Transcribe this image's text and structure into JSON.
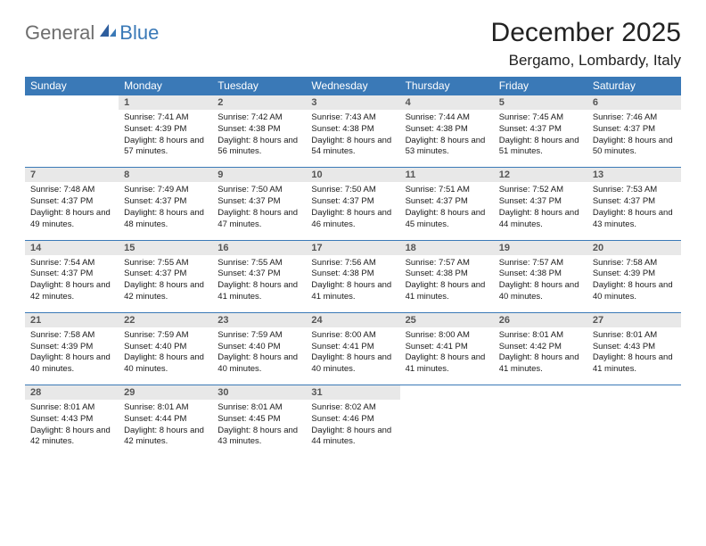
{
  "logo": {
    "general": "General",
    "blue": "Blue"
  },
  "title": "December 2025",
  "location": "Bergamo, Lombardy, Italy",
  "colors": {
    "header_bg": "#3a79b7",
    "header_fg": "#ffffff",
    "daynum_bg": "#e8e8e8",
    "daynum_fg": "#555555",
    "rule": "#3a79b7",
    "page_bg": "#ffffff"
  },
  "weekdays": [
    "Sunday",
    "Monday",
    "Tuesday",
    "Wednesday",
    "Thursday",
    "Friday",
    "Saturday"
  ],
  "weeks": [
    {
      "nums": [
        "",
        "1",
        "2",
        "3",
        "4",
        "5",
        "6"
      ],
      "cells": [
        null,
        {
          "sunrise": "7:41 AM",
          "sunset": "4:39 PM",
          "daylight": "8 hours and 57 minutes."
        },
        {
          "sunrise": "7:42 AM",
          "sunset": "4:38 PM",
          "daylight": "8 hours and 56 minutes."
        },
        {
          "sunrise": "7:43 AM",
          "sunset": "4:38 PM",
          "daylight": "8 hours and 54 minutes."
        },
        {
          "sunrise": "7:44 AM",
          "sunset": "4:38 PM",
          "daylight": "8 hours and 53 minutes."
        },
        {
          "sunrise": "7:45 AM",
          "sunset": "4:37 PM",
          "daylight": "8 hours and 51 minutes."
        },
        {
          "sunrise": "7:46 AM",
          "sunset": "4:37 PM",
          "daylight": "8 hours and 50 minutes."
        }
      ]
    },
    {
      "nums": [
        "7",
        "8",
        "9",
        "10",
        "11",
        "12",
        "13"
      ],
      "cells": [
        {
          "sunrise": "7:48 AM",
          "sunset": "4:37 PM",
          "daylight": "8 hours and 49 minutes."
        },
        {
          "sunrise": "7:49 AM",
          "sunset": "4:37 PM",
          "daylight": "8 hours and 48 minutes."
        },
        {
          "sunrise": "7:50 AM",
          "sunset": "4:37 PM",
          "daylight": "8 hours and 47 minutes."
        },
        {
          "sunrise": "7:50 AM",
          "sunset": "4:37 PM",
          "daylight": "8 hours and 46 minutes."
        },
        {
          "sunrise": "7:51 AM",
          "sunset": "4:37 PM",
          "daylight": "8 hours and 45 minutes."
        },
        {
          "sunrise": "7:52 AM",
          "sunset": "4:37 PM",
          "daylight": "8 hours and 44 minutes."
        },
        {
          "sunrise": "7:53 AM",
          "sunset": "4:37 PM",
          "daylight": "8 hours and 43 minutes."
        }
      ]
    },
    {
      "nums": [
        "14",
        "15",
        "16",
        "17",
        "18",
        "19",
        "20"
      ],
      "cells": [
        {
          "sunrise": "7:54 AM",
          "sunset": "4:37 PM",
          "daylight": "8 hours and 42 minutes."
        },
        {
          "sunrise": "7:55 AM",
          "sunset": "4:37 PM",
          "daylight": "8 hours and 42 minutes."
        },
        {
          "sunrise": "7:55 AM",
          "sunset": "4:37 PM",
          "daylight": "8 hours and 41 minutes."
        },
        {
          "sunrise": "7:56 AM",
          "sunset": "4:38 PM",
          "daylight": "8 hours and 41 minutes."
        },
        {
          "sunrise": "7:57 AM",
          "sunset": "4:38 PM",
          "daylight": "8 hours and 41 minutes."
        },
        {
          "sunrise": "7:57 AM",
          "sunset": "4:38 PM",
          "daylight": "8 hours and 40 minutes."
        },
        {
          "sunrise": "7:58 AM",
          "sunset": "4:39 PM",
          "daylight": "8 hours and 40 minutes."
        }
      ]
    },
    {
      "nums": [
        "21",
        "22",
        "23",
        "24",
        "25",
        "26",
        "27"
      ],
      "cells": [
        {
          "sunrise": "7:58 AM",
          "sunset": "4:39 PM",
          "daylight": "8 hours and 40 minutes."
        },
        {
          "sunrise": "7:59 AM",
          "sunset": "4:40 PM",
          "daylight": "8 hours and 40 minutes."
        },
        {
          "sunrise": "7:59 AM",
          "sunset": "4:40 PM",
          "daylight": "8 hours and 40 minutes."
        },
        {
          "sunrise": "8:00 AM",
          "sunset": "4:41 PM",
          "daylight": "8 hours and 40 minutes."
        },
        {
          "sunrise": "8:00 AM",
          "sunset": "4:41 PM",
          "daylight": "8 hours and 41 minutes."
        },
        {
          "sunrise": "8:01 AM",
          "sunset": "4:42 PM",
          "daylight": "8 hours and 41 minutes."
        },
        {
          "sunrise": "8:01 AM",
          "sunset": "4:43 PM",
          "daylight": "8 hours and 41 minutes."
        }
      ]
    },
    {
      "nums": [
        "28",
        "29",
        "30",
        "31",
        "",
        "",
        ""
      ],
      "cells": [
        {
          "sunrise": "8:01 AM",
          "sunset": "4:43 PM",
          "daylight": "8 hours and 42 minutes."
        },
        {
          "sunrise": "8:01 AM",
          "sunset": "4:44 PM",
          "daylight": "8 hours and 42 minutes."
        },
        {
          "sunrise": "8:01 AM",
          "sunset": "4:45 PM",
          "daylight": "8 hours and 43 minutes."
        },
        {
          "sunrise": "8:02 AM",
          "sunset": "4:46 PM",
          "daylight": "8 hours and 44 minutes."
        },
        null,
        null,
        null
      ]
    }
  ],
  "labels": {
    "sunrise": "Sunrise: ",
    "sunset": "Sunset: ",
    "daylight": "Daylight: "
  }
}
